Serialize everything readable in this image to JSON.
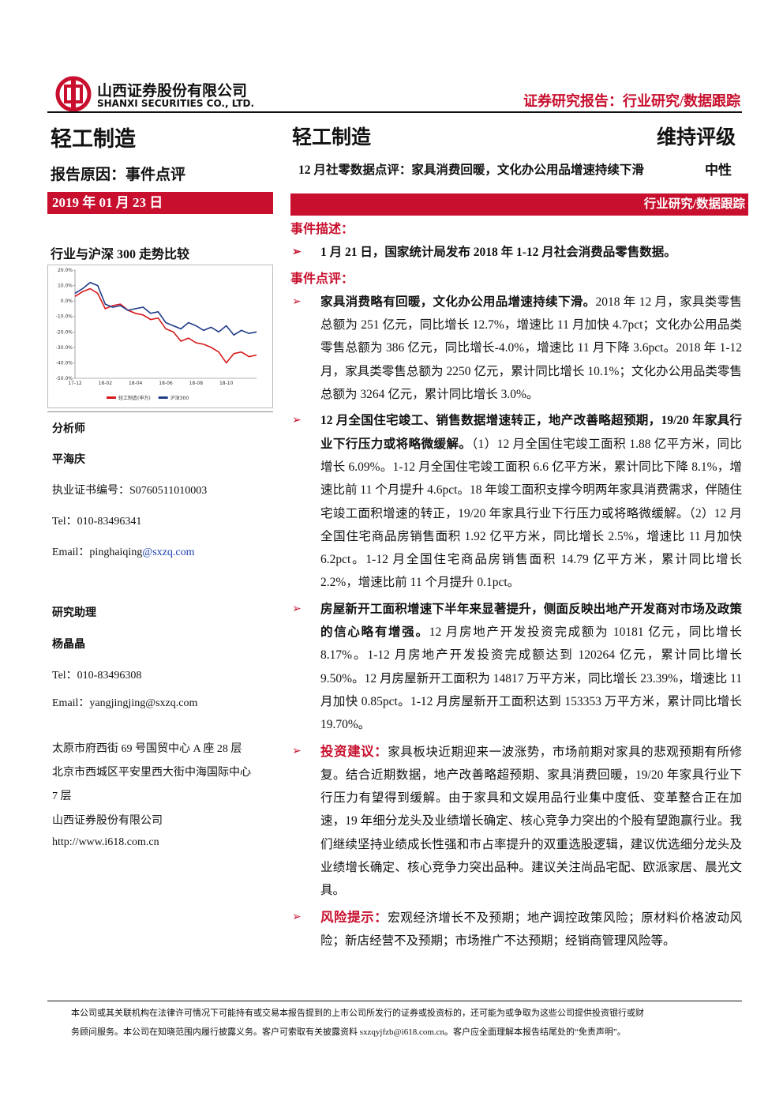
{
  "header": {
    "company_cn": "山西证券股份有限公司",
    "company_en": "SHANXI SECURITIES CO., LTD.",
    "report_type": "证券研究报告：行业研究/数据跟踪"
  },
  "left": {
    "industry": "轻工制造",
    "reason": "报告原因：事件点评",
    "date": "2019 年 01 月 23 日",
    "chart_title": "行业与沪深 300 走势比较",
    "analyst_label": "分析师",
    "analyst_name": "平海庆",
    "cert": "执业证书编号：S0760511010003",
    "tel": "Tel：010-83496341",
    "email_user": "Email：pinghaiqing",
    "email_domain": "@sxzq.com",
    "assistant_label": "研究助理",
    "assistant_name": "杨晶晶",
    "assistant_tel": "Tel：010-83496308",
    "assistant_email": "Email：yangjingjing@sxzq.com",
    "address1": "太原市府西街 69 号国贸中心 A 座 28 层",
    "address2": "北京市西城区平安里西大街中海国际中心",
    "address2_end": "7 层",
    "company": "山西证券股份有限公司",
    "website": "http://www.i618.com.cn"
  },
  "right": {
    "industry": "轻工制造",
    "rating": "维持评级",
    "subtitle": "12 月社零数据点评：家具消费回暖，文化办公用品增速持续下滑",
    "subrating": "中性",
    "section_bar": "行业研究/数据跟踪",
    "event_label": "事件描述：",
    "events": [
      "1 月 21 日，国家统计局发布 2018 年 1-12 月社会消费品零售数据。"
    ],
    "comment_label": "事件点评：",
    "comments": [
      {
        "lead": "家具消费略有回暖，文化办公用品增速持续下滑。",
        "body": "2018 年 12 月，家具类零售总额为 251 亿元，同比增长 12.7%，增速比 11 月加快 4.7pct；文化办公用品类零售总额为 386 亿元，同比增长-4.0%，增速比 11 月下降 3.6pct。2018 年 1-12 月，家具类零售总额为 2250 亿元，累计同比增长 10.1%；文化办公用品类零售总额为 3264 亿元，累计同比增长 3.0%。"
      },
      {
        "lead": "12 月全国住宅竣工、销售数据增速转正，地产改善略超预期，19/20 年家具行业下行压力或将略微缓解。",
        "body": "（1）12 月全国住宅竣工面积 1.88 亿平方米，同比增长 6.09%。1-12 月全国住宅竣工面积 6.6 亿平方米，累计同比下降 8.1%，增速比前 11 个月提升 4.6pct。18 年竣工面积支撑今明两年家具消费需求，伴随住宅竣工面积增速的转正，19/20 年家具行业下行压力或将略微缓解。（2）12 月全国住宅商品房销售面积 1.92 亿平方米，同比增长 2.5%，增速比 11 月加快 6.2pct。1-12 月全国住宅商品房销售面积 14.79 亿平方米，累计同比增长 2.2%，增速比前 11 个月提升 0.1pct。"
      },
      {
        "lead": "房屋新开工面积增速下半年来显著提升，侧面反映出地产开发商对市场及政策的信心略有增强。",
        "body": "12 月房地产开发投资完成额为 10181 亿元，同比增长 8.17%。1-12 月房地产开发投资完成额达到 120264 亿元，累计同比增长 9.50%。12 月房屋新开工面积为 14817 万平方米，同比增长 23.39%，增速比 11 月加快 0.85pct。1-12 月房屋新开工面积达到 153353 万平方米，累计同比增长 19.70%。"
      },
      {
        "label": "投资建议：",
        "body": "家具板块近期迎来一波涨势，市场前期对家具的悲观预期有所修复。结合近期数据，地产改善略超预期、家具消费回暖，19/20 年家具行业下行压力有望得到缓解。由于家具和文娱用品行业集中度低、变革整合正在加速，19 年细分龙头及业绩增长确定、核心竞争力突出的个股有望跑赢行业。我们继续坚持业绩成长性强和市占率提升的双重选股逻辑，建议优选细分龙头及业绩增长确定、核心竞争力突出品种。建议关注尚品宅配、欧派家居、晨光文具。"
      },
      {
        "label": "风险提示：",
        "body": "宏观经济增长不及预期；地产调控政策风险；原材料价格波动风险；新店经营不及预期；市场推广不达预期；经销商管理风险等。"
      }
    ]
  },
  "chart_data": {
    "type": "line",
    "categories": [
      "17-12",
      null,
      null,
      null,
      "18-02",
      null,
      null,
      null,
      "18-04",
      null,
      null,
      null,
      "18-06",
      null,
      null,
      null,
      "18-08",
      null,
      null,
      null,
      "18-10",
      null,
      null,
      null,
      null
    ],
    "series": [
      {
        "name": "轻工制造(申万)",
        "color": "#d7191c",
        "values": [
          3,
          6,
          8,
          5,
          -5,
          -3,
          -2,
          -6,
          -8,
          -9,
          -12,
          -11,
          -18,
          -20,
          -26,
          -24,
          -27,
          -28,
          -30,
          -33,
          -40,
          -34,
          -33,
          -36,
          -35
        ]
      },
      {
        "name": "沪深300",
        "color": "#1f3c88",
        "values": [
          5,
          8,
          12,
          10,
          -2,
          -4,
          -3,
          -6,
          -5,
          -4,
          -8,
          -7,
          -14,
          -16,
          -18,
          -14,
          -16,
          -19,
          -17,
          -20,
          -16,
          -22,
          -19,
          -21,
          -20
        ]
      }
    ],
    "ylim": [
      -50,
      20
    ],
    "yticks": [
      {
        "value": 20,
        "label": "20.0%"
      },
      {
        "value": 10,
        "label": "10.0%"
      },
      {
        "value": 0,
        "label": "0.0%"
      },
      {
        "value": -10,
        "label": "-10.0%"
      },
      {
        "value": -20,
        "label": "-20.0%"
      },
      {
        "value": -30,
        "label": "-30.0%"
      },
      {
        "value": -40,
        "label": "-40.0%"
      },
      {
        "value": -50,
        "label": "-50.0%"
      }
    ]
  },
  "footer": [
    "本公司或其关联机构在法律许可情况下可能持有或交易本报告提到的上市公司所发行的证券或投资标的，还可能为或争取为这些公司提供投资银行或财",
    "务顾问服务。本公司在知晓范围内履行披露义务。客户可索取有关披露资料 sxzqyjfzb@i618.com.cn。客户应全面理解本报告结尾处的“免责声明”。"
  ]
}
